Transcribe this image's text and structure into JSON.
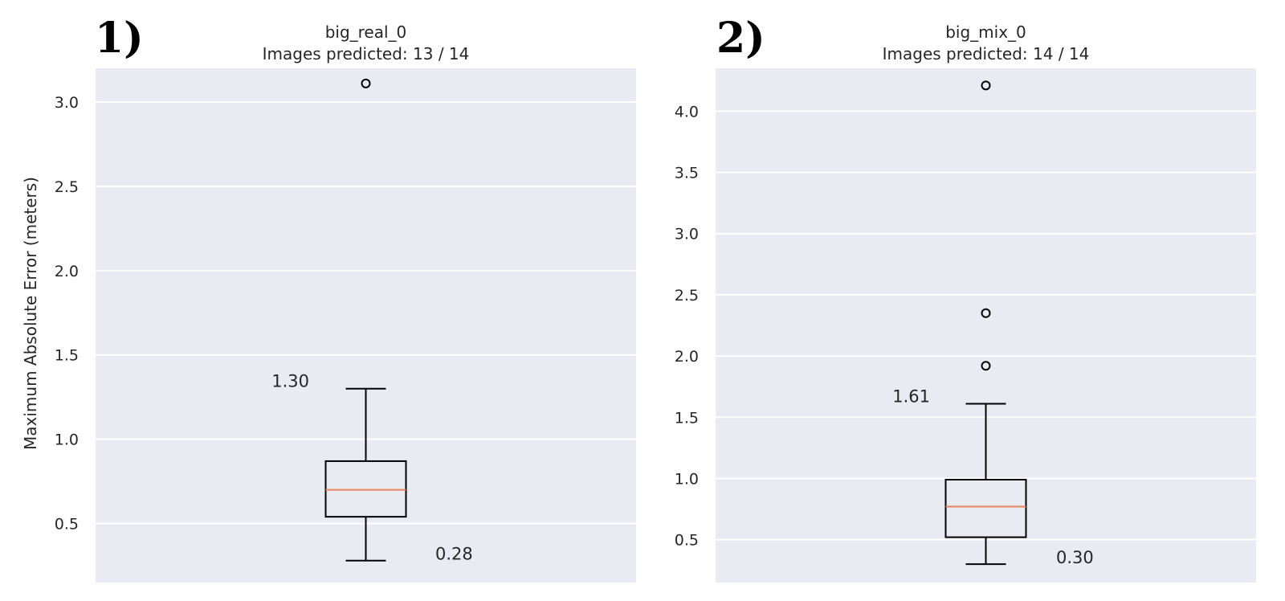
{
  "chart_data": [
    {
      "type": "boxplot",
      "panel_label": "1)",
      "title": "big_real_0",
      "subtitle": "Images predicted: 13 / 14",
      "ylabel": "Maximum Absolute Error (meters)",
      "ylim": [
        0.15,
        3.2
      ],
      "yticks": [
        0.5,
        1.0,
        1.5,
        2.0,
        2.5,
        3.0
      ],
      "ytick_labels": [
        "0.5",
        "1.0",
        "1.5",
        "2.0",
        "2.5",
        "3.0"
      ],
      "box": {
        "whisker_low": 0.28,
        "q1": 0.54,
        "median": 0.7,
        "q3": 0.87,
        "whisker_high": 1.3
      },
      "outliers": [
        3.11
      ],
      "annotations": [
        {
          "text": "1.30",
          "value": 1.3,
          "side": "left"
        },
        {
          "text": "0.28",
          "value": 0.28,
          "side": "right"
        }
      ],
      "grid": true,
      "background": "#eaeaf2",
      "median_color": "#e8845e"
    },
    {
      "type": "boxplot",
      "panel_label": "2)",
      "title": "big_mix_0",
      "subtitle": "Images predicted: 14 / 14",
      "ylabel": "",
      "ylim": [
        0.15,
        4.35
      ],
      "yticks": [
        0.5,
        1.0,
        1.5,
        2.0,
        2.5,
        3.0,
        3.5,
        4.0
      ],
      "ytick_labels": [
        "0.5",
        "1.0",
        "1.5",
        "2.0",
        "2.5",
        "3.0",
        "3.5",
        "4.0"
      ],
      "box": {
        "whisker_low": 0.3,
        "q1": 0.52,
        "median": 0.77,
        "q3": 0.99,
        "whisker_high": 1.61
      },
      "outliers": [
        1.92,
        2.35,
        4.21
      ],
      "annotations": [
        {
          "text": "1.61",
          "value": 1.61,
          "side": "left"
        },
        {
          "text": "0.30",
          "value": 0.3,
          "side": "right"
        }
      ],
      "grid": true,
      "background": "#eaeaf2",
      "median_color": "#e8845e"
    }
  ]
}
